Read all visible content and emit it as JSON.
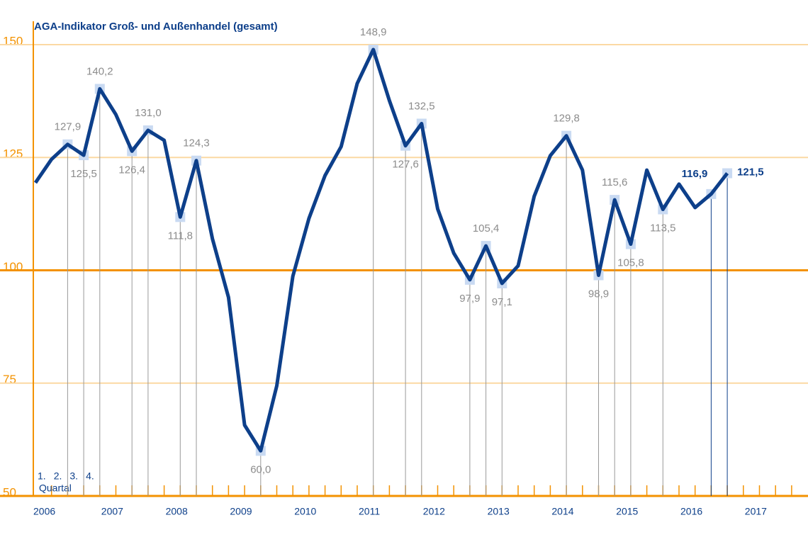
{
  "chart_data": {
    "type": "line",
    "title": "AGA-Indikator Groß- und Außenhandel (gesamt)",
    "categories": [
      "2006",
      null,
      null,
      null,
      "2007",
      null,
      null,
      null,
      "2008",
      null,
      null,
      null,
      "2009",
      null,
      null,
      null,
      "2010",
      null,
      null,
      null,
      "2011",
      null,
      null,
      null,
      "2012",
      null,
      null,
      null,
      "2013",
      null,
      null,
      null,
      "2014",
      null,
      null,
      null,
      "2015",
      null,
      null,
      null,
      "2016",
      null,
      null,
      null,
      "2017",
      null,
      null,
      null
    ],
    "series": [
      {
        "name": "AGA-Indikator",
        "color": "#0d3f8a",
        "values": [
          119.4,
          124.6,
          127.9,
          125.5,
          140.2,
          134.5,
          126.4,
          131.0,
          128.8,
          111.8,
          124.3,
          107.0,
          94.0,
          65.7,
          60.0,
          74.4,
          98.7,
          111.5,
          121.0,
          127.4,
          141.4,
          148.9,
          137.6,
          127.6,
          132.5,
          113.6,
          103.8,
          97.9,
          105.4,
          97.1,
          101.0,
          116.4,
          125.4,
          129.8,
          122.2,
          98.9,
          115.6,
          105.8,
          122.2,
          113.5,
          119.1,
          113.9,
          116.9,
          121.5,
          null,
          null,
          null,
          null
        ],
        "value_labels": [
          null,
          null,
          "127,9",
          "125,5",
          "140,2",
          null,
          "126,4",
          "131,0",
          null,
          "111,8",
          "124,3",
          null,
          null,
          null,
          "60,0",
          null,
          null,
          null,
          null,
          null,
          null,
          "148,9",
          null,
          "127,6",
          "132,5",
          null,
          null,
          "97,9",
          "105,4",
          "97,1",
          null,
          null,
          null,
          "129,8",
          null,
          "98,9",
          "115,6",
          "105,8",
          null,
          "113,5",
          null,
          null,
          "116,9",
          "121,5",
          null,
          null,
          null,
          null
        ]
      }
    ],
    "ylim": [
      50,
      150
    ],
    "yticks": [
      50,
      75,
      100,
      125,
      150
    ],
    "grid": true,
    "reference_line": 100,
    "annotations": [
      "1.",
      "2.",
      "3.",
      "4.",
      "Quartal"
    ]
  }
}
